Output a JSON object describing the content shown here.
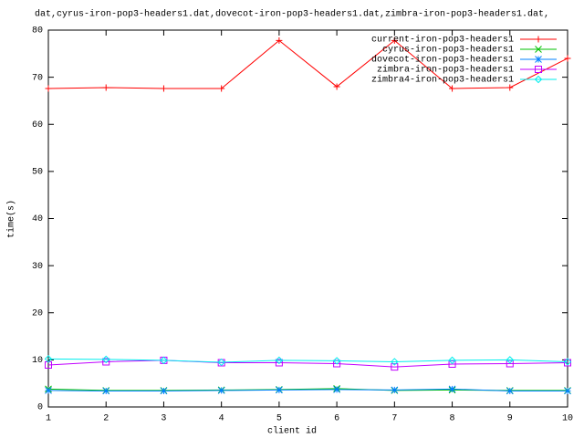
{
  "chart_data": {
    "type": "line",
    "title": "dat,cyrus-iron-pop3-headers1.dat,dovecot-iron-pop3-headers1.dat,zimbra-iron-pop3-headers1.dat,",
    "x_label": "client id",
    "y_label": "time(s)",
    "x": [
      1,
      2,
      3,
      4,
      5,
      6,
      7,
      8,
      9,
      10
    ],
    "series": [
      {
        "name": "current-iron-pop3-headers1",
        "color": "#ff0000",
        "values": [
          67.6,
          67.8,
          67.6,
          67.6,
          77.8,
          68,
          77.8,
          67.6,
          67.8,
          74
        ]
      },
      {
        "name": "cyrus-iron-pop3-headers1",
        "color": "#00c000",
        "values": [
          3.8,
          3.5,
          3.5,
          3.6,
          3.7,
          3.9,
          3.5,
          3.6,
          3.5,
          3.5
        ]
      },
      {
        "name": "dovecot-iron-pop3-headers1",
        "color": "#0080ff",
        "values": [
          3.5,
          3.4,
          3.4,
          3.5,
          3.6,
          3.7,
          3.6,
          3.8,
          3.4,
          3.4
        ]
      },
      {
        "name": "zimbra-iron-pop3-headers1",
        "color": "#c000ff",
        "values": [
          8.9,
          9.6,
          9.9,
          9.4,
          9.4,
          9.2,
          8.5,
          9.1,
          9.2,
          9.4
        ]
      },
      {
        "name": "zimbra4-iron-pop3-headers1",
        "color": "#00eeee",
        "values": [
          10.2,
          10.1,
          9.9,
          9.5,
          9.9,
          9.8,
          9.6,
          9.9,
          10.0,
          9.6
        ]
      }
    ],
    "xlim": [
      1,
      10
    ],
    "xticks": [
      1,
      2,
      3,
      4,
      5,
      6,
      7,
      8,
      9,
      10
    ],
    "ylim": [
      0,
      80
    ],
    "yticks": [
      0,
      10,
      20,
      30,
      40,
      50,
      60,
      70,
      80
    ],
    "legend": "top-right"
  }
}
